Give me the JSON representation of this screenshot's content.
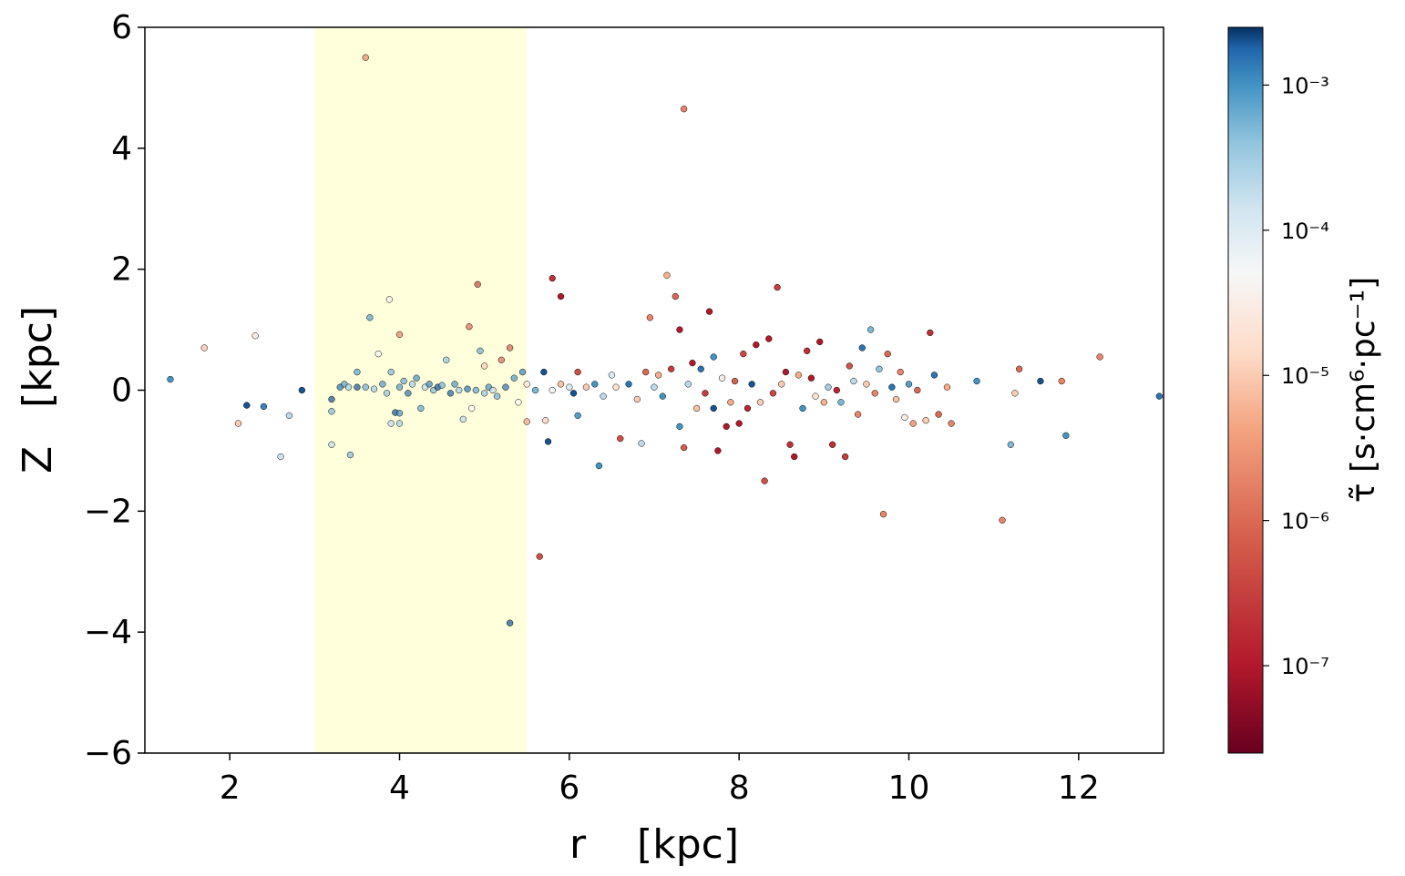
{
  "chart_data": {
    "type": "scatter",
    "title": "",
    "xlabel": "r    [kpc]",
    "ylabel": "Z   [kpc]",
    "xlim": [
      1,
      13
    ],
    "ylim": [
      -6,
      6
    ],
    "x_ticks": [
      "2",
      "4",
      "6",
      "8",
      "10",
      "12"
    ],
    "y_ticks": [
      "6",
      "4",
      "2",
      "0",
      "−2",
      "−4",
      "−6"
    ],
    "grid": false,
    "highlight_band": {
      "x_from": 3.0,
      "x_to": 5.5,
      "color": "#ffffdc"
    },
    "colorbar": {
      "label": "τ̃  [s·cm⁶·pc⁻¹]",
      "scale": "log",
      "range": [
        2.5e-08,
        0.0025
      ],
      "colormap": "RdBu",
      "ticks": [
        {
          "value": 0.001,
          "label": "10⁻³"
        },
        {
          "value": 0.0001,
          "label": "10⁻⁴"
        },
        {
          "value": 1e-05,
          "label": "10⁻⁵"
        },
        {
          "value": 1e-06,
          "label": "10⁻⁶"
        },
        {
          "value": 1e-07,
          "label": "10⁻⁷"
        }
      ]
    },
    "points": [
      [
        1.3,
        0.18,
        0.001
      ],
      [
        1.7,
        0.7,
        1.2e-05
      ],
      [
        2.1,
        -0.55,
        1e-05
      ],
      [
        2.2,
        -0.25,
        0.002
      ],
      [
        2.3,
        0.9,
        3e-05
      ],
      [
        2.4,
        -0.27,
        0.0012
      ],
      [
        2.6,
        -1.1,
        0.00015
      ],
      [
        2.7,
        -0.42,
        0.0002
      ],
      [
        2.85,
        0.0,
        0.002
      ],
      [
        3.2,
        -0.15,
        0.002
      ],
      [
        3.2,
        -0.35,
        0.0005
      ],
      [
        3.2,
        -0.9,
        0.0002
      ],
      [
        3.3,
        0.05,
        0.0015
      ],
      [
        3.35,
        0.1,
        0.0008
      ],
      [
        3.4,
        0.05,
        0.0003
      ],
      [
        3.42,
        -1.07,
        0.0005
      ],
      [
        3.5,
        0.05,
        0.002
      ],
      [
        3.5,
        0.3,
        0.0008
      ],
      [
        3.6,
        5.5,
        2e-06
      ],
      [
        3.6,
        0.05,
        0.0006
      ],
      [
        3.65,
        1.2,
        0.0008
      ],
      [
        3.7,
        0.02,
        0.0003
      ],
      [
        3.75,
        0.6,
        5e-05
      ],
      [
        3.8,
        0.1,
        0.0009
      ],
      [
        3.85,
        -0.05,
        0.0004
      ],
      [
        3.88,
        1.5,
        3e-05
      ],
      [
        3.9,
        0.3,
        0.0005
      ],
      [
        3.9,
        -0.55,
        0.0002
      ],
      [
        3.95,
        -0.37,
        0.002
      ],
      [
        4.0,
        0.05,
        0.0008
      ],
      [
        4.0,
        -0.38,
        0.001
      ],
      [
        4.0,
        -0.55,
        0.0003
      ],
      [
        4.0,
        0.92,
        2e-06
      ],
      [
        4.05,
        0.15,
        0.0006
      ],
      [
        4.1,
        -0.05,
        0.0015
      ],
      [
        4.15,
        0.1,
        0.0003
      ],
      [
        4.2,
        0.2,
        0.001
      ],
      [
        4.25,
        -0.3,
        0.0007
      ],
      [
        4.3,
        0.05,
        0.0002
      ],
      [
        4.35,
        0.1,
        0.0012
      ],
      [
        4.4,
        0.0,
        0.0005
      ],
      [
        4.45,
        0.05,
        0.002
      ],
      [
        4.5,
        0.08,
        0.0006
      ],
      [
        4.55,
        0.5,
        0.0004
      ],
      [
        4.6,
        -0.05,
        0.0018
      ],
      [
        4.65,
        0.1,
        0.0009
      ],
      [
        4.7,
        0.0,
        0.0003
      ],
      [
        4.75,
        -0.48,
        0.0002
      ],
      [
        4.8,
        0.02,
        0.0015
      ],
      [
        4.82,
        1.05,
        1e-06
      ],
      [
        4.85,
        -0.3,
        5e-05
      ],
      [
        4.9,
        0.0,
        0.0007
      ],
      [
        4.92,
        1.75,
        4e-07
      ],
      [
        4.95,
        0.65,
        0.0006
      ],
      [
        5.0,
        -0.05,
        0.0004
      ],
      [
        5.0,
        0.4,
        1e-05
      ],
      [
        5.05,
        0.05,
        0.001
      ],
      [
        5.1,
        0.0,
        0.0002
      ],
      [
        5.15,
        -0.1,
        0.0006
      ],
      [
        5.2,
        0.5,
        1e-06
      ],
      [
        5.25,
        0.05,
        0.0015
      ],
      [
        5.3,
        0.7,
        8e-07
      ],
      [
        5.3,
        -3.85,
        0.002
      ],
      [
        5.35,
        0.2,
        0.0009
      ],
      [
        5.4,
        -0.2,
        5e-05
      ],
      [
        5.45,
        0.3,
        0.0012
      ],
      [
        5.5,
        -0.52,
        4e-06
      ],
      [
        5.5,
        0.1,
        2e-05
      ],
      [
        5.6,
        0.0,
        0.0005
      ],
      [
        5.65,
        -2.75,
        5e-07
      ],
      [
        5.7,
        0.3,
        0.002
      ],
      [
        5.72,
        -0.5,
        1.5e-05
      ],
      [
        5.75,
        -0.85,
        0.002
      ],
      [
        5.8,
        1.85,
        2e-07
      ],
      [
        5.8,
        0.0,
        5e-05
      ],
      [
        5.9,
        1.55,
        1e-07
      ],
      [
        5.9,
        0.1,
        8e-06
      ],
      [
        6.0,
        0.05,
        0.0001
      ],
      [
        6.05,
        -0.05,
        0.002
      ],
      [
        6.1,
        0.3,
        5e-07
      ],
      [
        6.1,
        -0.42,
        0.0008
      ],
      [
        6.2,
        0.05,
        1e-05
      ],
      [
        6.3,
        0.1,
        0.001
      ],
      [
        6.35,
        -1.25,
        0.001
      ],
      [
        6.4,
        -0.1,
        0.0002
      ],
      [
        6.5,
        0.25,
        0.0001
      ],
      [
        6.55,
        0.05,
        2e-05
      ],
      [
        6.6,
        -0.8,
        5e-07
      ],
      [
        6.7,
        0.1,
        0.0015
      ],
      [
        6.8,
        -0.15,
        1e-05
      ],
      [
        6.85,
        -0.88,
        0.0002
      ],
      [
        6.9,
        0.3,
        1e-06
      ],
      [
        6.95,
        1.2,
        2e-06
      ],
      [
        7.0,
        0.05,
        0.0002
      ],
      [
        7.05,
        0.25,
        5e-06
      ],
      [
        7.1,
        -0.1,
        0.001
      ],
      [
        7.15,
        1.9,
        6e-06
      ],
      [
        7.2,
        0.35,
        3e-07
      ],
      [
        7.25,
        1.55,
        1e-06
      ],
      [
        7.3,
        1.0,
        1e-07
      ],
      [
        7.3,
        -0.6,
        0.001
      ],
      [
        7.35,
        -0.95,
        8e-07
      ],
      [
        7.35,
        4.65,
        2e-06
      ],
      [
        7.4,
        0.1,
        0.0002
      ],
      [
        7.45,
        0.45,
        1e-07
      ],
      [
        7.5,
        -0.3,
        8e-06
      ],
      [
        7.55,
        0.35,
        0.0015
      ],
      [
        7.6,
        -0.05,
        3e-07
      ],
      [
        7.65,
        1.3,
        1e-07
      ],
      [
        7.7,
        0.55,
        0.001
      ],
      [
        7.7,
        -0.3,
        0.002
      ],
      [
        7.75,
        -1.0,
        1e-07
      ],
      [
        7.8,
        0.2,
        3e-05
      ],
      [
        7.85,
        -0.6,
        1e-07
      ],
      [
        7.9,
        -0.2,
        5e-06
      ],
      [
        7.95,
        0.15,
        8e-07
      ],
      [
        8.0,
        -0.55,
        1e-07
      ],
      [
        8.05,
        0.6,
        4e-07
      ],
      [
        8.1,
        -0.3,
        1.5e-07
      ],
      [
        8.15,
        0.1,
        0.002
      ],
      [
        8.2,
        0.75,
        1e-07
      ],
      [
        8.25,
        -0.2,
        1e-05
      ],
      [
        8.3,
        -1.5,
        5e-07
      ],
      [
        8.35,
        0.85,
        1e-07
      ],
      [
        8.4,
        -0.05,
        4e-07
      ],
      [
        8.45,
        1.7,
        3e-07
      ],
      [
        8.5,
        0.1,
        1e-05
      ],
      [
        8.55,
        0.3,
        1e-07
      ],
      [
        8.6,
        -0.9,
        2e-07
      ],
      [
        8.65,
        -1.1,
        1e-07
      ],
      [
        8.7,
        0.25,
        5e-06
      ],
      [
        8.75,
        -0.3,
        0.001
      ],
      [
        8.8,
        0.65,
        2e-07
      ],
      [
        8.85,
        0.2,
        1e-07
      ],
      [
        8.9,
        -0.1,
        2e-05
      ],
      [
        8.95,
        0.8,
        1e-07
      ],
      [
        9.0,
        -0.2,
        6e-06
      ],
      [
        9.05,
        0.05,
        0.0003
      ],
      [
        9.1,
        -0.9,
        2e-07
      ],
      [
        9.15,
        0.0,
        1.5e-07
      ],
      [
        9.2,
        -0.2,
        0.0005
      ],
      [
        9.25,
        -1.1,
        3e-07
      ],
      [
        9.3,
        0.4,
        6e-07
      ],
      [
        9.35,
        0.15,
        0.0002
      ],
      [
        9.4,
        -0.4,
        2e-06
      ],
      [
        9.45,
        0.7,
        0.0015
      ],
      [
        9.5,
        0.1,
        1e-05
      ],
      [
        9.55,
        1.0,
        0.0005
      ],
      [
        9.6,
        -0.05,
        2e-06
      ],
      [
        9.65,
        0.35,
        0.0004
      ],
      [
        9.7,
        -2.05,
        2e-06
      ],
      [
        9.75,
        0.6,
        1e-06
      ],
      [
        9.8,
        0.05,
        0.0015
      ],
      [
        9.85,
        -0.15,
        8e-06
      ],
      [
        9.9,
        0.3,
        2e-06
      ],
      [
        9.95,
        -0.45,
        3e-05
      ],
      [
        10.0,
        0.1,
        0.0008
      ],
      [
        10.05,
        -0.55,
        4e-06
      ],
      [
        10.1,
        0.0,
        1e-06
      ],
      [
        10.2,
        -0.5,
        1e-05
      ],
      [
        10.25,
        0.95,
        2e-07
      ],
      [
        10.3,
        0.25,
        0.0015
      ],
      [
        10.35,
        -0.4,
        1e-06
      ],
      [
        10.45,
        0.05,
        5e-06
      ],
      [
        10.5,
        -0.55,
        2e-06
      ],
      [
        10.8,
        0.15,
        0.001
      ],
      [
        11.1,
        -2.15,
        2e-06
      ],
      [
        11.2,
        -0.9,
        0.0005
      ],
      [
        11.25,
        -0.05,
        1e-05
      ],
      [
        11.3,
        0.35,
        1e-06
      ],
      [
        11.55,
        0.15,
        0.002
      ],
      [
        11.8,
        0.15,
        2e-06
      ],
      [
        11.85,
        -0.75,
        0.001
      ],
      [
        12.25,
        0.55,
        2e-06
      ],
      [
        12.95,
        -0.1,
        0.0015
      ]
    ]
  }
}
